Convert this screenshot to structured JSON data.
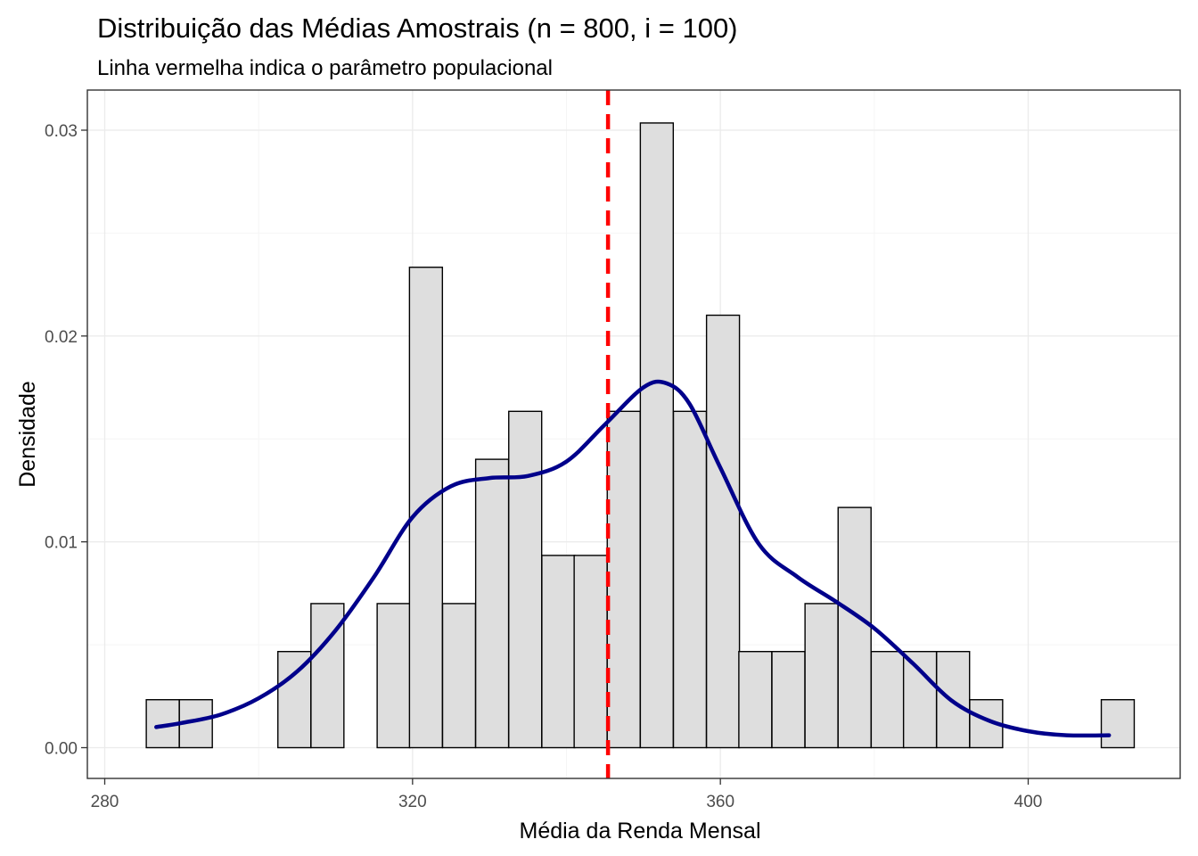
{
  "chart_data": {
    "type": "bar",
    "title": "Distribuição das Médias Amostrais (n = 800, i = 100)",
    "subtitle": "Linha vermelha indica o parâmetro populacional",
    "xlabel": "Média da Renda Mensal",
    "ylabel": "Densidade",
    "xlim": [
      280,
      410
    ],
    "ylim": [
      0.0,
      0.031
    ],
    "x_ticks": [
      "280",
      "320",
      "360",
      "400"
    ],
    "y_ticks": [
      "0.00",
      "0.01",
      "0.02",
      "0.03"
    ],
    "x_tick_values": [
      280,
      320,
      360,
      400
    ],
    "y_tick_values": [
      0.0,
      0.01,
      0.02,
      0.03
    ],
    "grid": true,
    "bin_width": 4.28,
    "bins": [
      {
        "x0": 285.4,
        "density": 0.00233
      },
      {
        "x0": 289.7,
        "density": 0.00233
      },
      {
        "x0": 294.0,
        "density": 0.0
      },
      {
        "x0": 298.2,
        "density": 0.0
      },
      {
        "x0": 302.5,
        "density": 0.00467
      },
      {
        "x0": 306.8,
        "density": 0.007
      },
      {
        "x0": 311.1,
        "density": 0.0
      },
      {
        "x0": 315.4,
        "density": 0.007
      },
      {
        "x0": 319.6,
        "density": 0.02334
      },
      {
        "x0": 323.9,
        "density": 0.007
      },
      {
        "x0": 328.2,
        "density": 0.01401
      },
      {
        "x0": 332.5,
        "density": 0.01634
      },
      {
        "x0": 336.8,
        "density": 0.00934
      },
      {
        "x0": 341.0,
        "density": 0.00934
      },
      {
        "x0": 345.3,
        "density": 0.01634
      },
      {
        "x0": 349.6,
        "density": 0.03035
      },
      {
        "x0": 353.9,
        "density": 0.01634
      },
      {
        "x0": 358.2,
        "density": 0.02101
      },
      {
        "x0": 362.4,
        "density": 0.00467
      },
      {
        "x0": 366.7,
        "density": 0.00467
      },
      {
        "x0": 371.0,
        "density": 0.007
      },
      {
        "x0": 375.3,
        "density": 0.01167
      },
      {
        "x0": 379.6,
        "density": 0.00467
      },
      {
        "x0": 383.8,
        "density": 0.00467
      },
      {
        "x0": 388.1,
        "density": 0.00467
      },
      {
        "x0": 392.4,
        "density": 0.00233
      },
      {
        "x0": 396.7,
        "density": 0.0
      },
      {
        "x0": 401.0,
        "density": 0.0
      },
      {
        "x0": 405.2,
        "density": 0.0
      },
      {
        "x0": 409.5,
        "density": 0.00233
      }
    ],
    "density_curve": {
      "x": [
        286.7,
        290,
        295,
        300,
        305,
        310,
        315,
        320,
        325,
        330,
        335,
        340,
        345,
        350,
        353,
        356,
        360,
        365,
        370,
        375,
        380,
        385,
        390,
        395,
        400,
        405,
        410.5
      ],
      "y": [
        0.001,
        0.0012,
        0.0016,
        0.0024,
        0.0037,
        0.0057,
        0.0083,
        0.0112,
        0.0127,
        0.0131,
        0.0132,
        0.0139,
        0.0157,
        0.0175,
        0.0177,
        0.0167,
        0.0136,
        0.0099,
        0.0083,
        0.0071,
        0.0058,
        0.0041,
        0.0023,
        0.0013,
        0.0008,
        0.0006,
        0.0006
      ],
      "color": "#00008b"
    },
    "reference_line": {
      "x": 345.4,
      "color": "#ff0000",
      "style": "dashed"
    },
    "bar_fill": "#dedede",
    "bar_outline": "#000000"
  }
}
